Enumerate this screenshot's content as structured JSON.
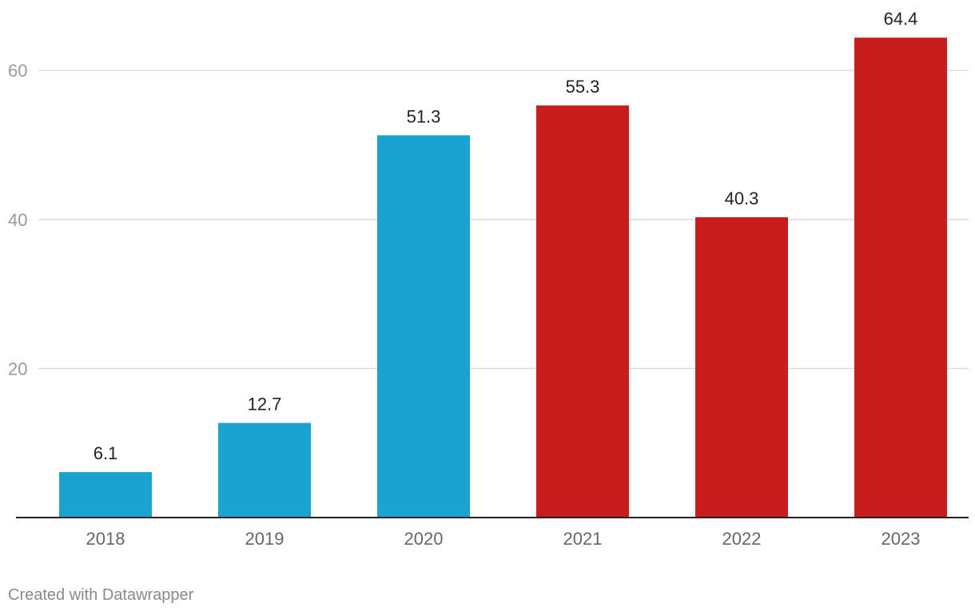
{
  "chart_data": {
    "type": "bar",
    "categories": [
      "2018",
      "2019",
      "2020",
      "2021",
      "2022",
      "2023"
    ],
    "values": [
      6.1,
      12.7,
      51.3,
      55.3,
      40.3,
      64.4
    ],
    "value_labels": [
      "6.1",
      "12.7",
      "51.3",
      "55.3",
      "40.3",
      "64.4"
    ],
    "bar_colors": [
      "#1aa3d0",
      "#1aa3d0",
      "#1aa3d0",
      "#c91d1d",
      "#c91d1d",
      "#c91d1d"
    ],
    "y_ticks": [
      20,
      40,
      60
    ],
    "ylim": [
      0,
      69
    ],
    "grid": true,
    "title": "",
    "xlabel": "",
    "ylabel": ""
  },
  "footer": {
    "credit": "Created with Datawrapper"
  }
}
